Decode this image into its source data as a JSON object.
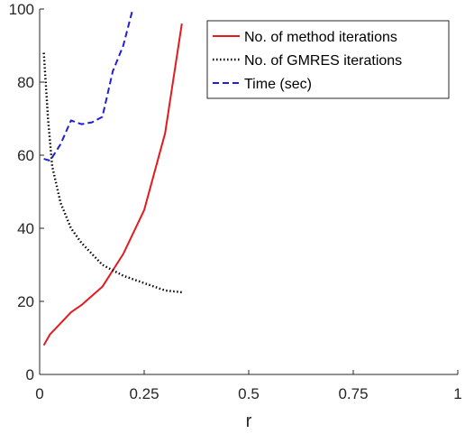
{
  "chart_data": {
    "type": "line",
    "title": "",
    "xlabel": "r",
    "ylabel": "",
    "xlim": [
      0,
      1
    ],
    "ylim": [
      0,
      100
    ],
    "xticks": [
      0,
      0.25,
      0.5,
      0.75,
      1
    ],
    "xtick_labels": [
      "0",
      "0.25",
      "0.5",
      "0.75",
      "1"
    ],
    "yticks": [
      0,
      20,
      40,
      60,
      80,
      100
    ],
    "ytick_labels": [
      "0",
      "20",
      "40",
      "60",
      "80",
      "100"
    ],
    "grid": false,
    "legend_position": "top-right",
    "series": [
      {
        "name": "No. of method iterations",
        "color": "#e41a1c",
        "dash": "solid",
        "x": [
          0.01,
          0.025,
          0.05,
          0.075,
          0.1,
          0.15,
          0.2,
          0.25,
          0.3,
          0.34
        ],
        "y": [
          8,
          11,
          14,
          17,
          19,
          24,
          33,
          45,
          66,
          96
        ]
      },
      {
        "name": "No. of GMRES iterations",
        "color": "#000000",
        "dash": "dotted",
        "x": [
          0.01,
          0.02,
          0.03,
          0.05,
          0.075,
          0.1,
          0.15,
          0.2,
          0.25,
          0.3,
          0.34
        ],
        "y": [
          88,
          70,
          57,
          47,
          40,
          36,
          30,
          27,
          25,
          23,
          22.5
        ]
      },
      {
        "name": "Time (sec)",
        "color": "#1f1fd6",
        "dash": "dashed",
        "x": [
          0.01,
          0.025,
          0.05,
          0.075,
          0.1,
          0.125,
          0.15,
          0.175,
          0.2,
          0.225
        ],
        "y": [
          59,
          58.5,
          63,
          69.5,
          68.5,
          69,
          70.5,
          83,
          90,
          101
        ]
      }
    ]
  }
}
